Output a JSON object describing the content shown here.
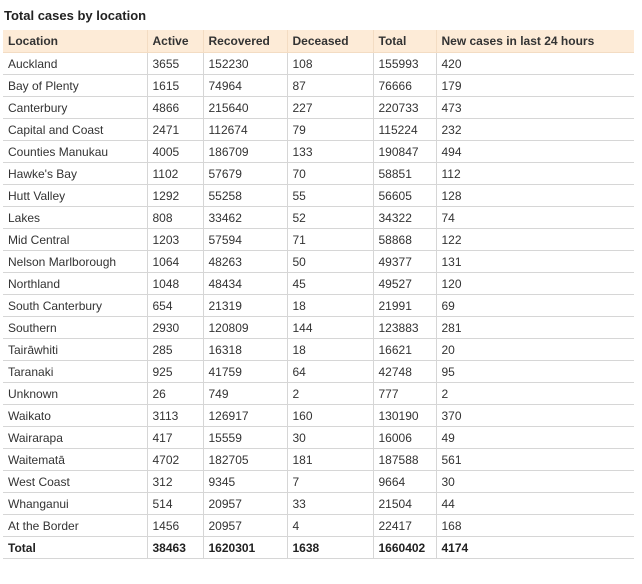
{
  "title": "Total cases by location",
  "columns": [
    "Location",
    "Active",
    "Recovered",
    "Deceased",
    "Total",
    "New cases in last 24 hours"
  ],
  "rows": [
    [
      "Auckland",
      "3655",
      "152230",
      "108",
      "155993",
      "420"
    ],
    [
      "Bay of Plenty",
      "1615",
      "74964",
      "87",
      "76666",
      "179"
    ],
    [
      "Canterbury",
      "4866",
      "215640",
      "227",
      "220733",
      "473"
    ],
    [
      "Capital and Coast",
      "2471",
      "112674",
      "79",
      "115224",
      "232"
    ],
    [
      "Counties Manukau",
      "4005",
      "186709",
      "133",
      "190847",
      "494"
    ],
    [
      "Hawke's Bay",
      "1102",
      "57679",
      "70",
      "58851",
      "112"
    ],
    [
      "Hutt Valley",
      "1292",
      "55258",
      "55",
      "56605",
      "128"
    ],
    [
      "Lakes",
      "808",
      "33462",
      "52",
      "34322",
      "74"
    ],
    [
      "Mid Central",
      "1203",
      "57594",
      "71",
      "58868",
      "122"
    ],
    [
      "Nelson Marlborough",
      "1064",
      "48263",
      "50",
      "49377",
      "131"
    ],
    [
      "Northland",
      "1048",
      "48434",
      "45",
      "49527",
      "120"
    ],
    [
      "South Canterbury",
      "654",
      "21319",
      "18",
      "21991",
      "69"
    ],
    [
      "Southern",
      "2930",
      "120809",
      "144",
      "123883",
      "281"
    ],
    [
      "Tairāwhiti",
      "285",
      "16318",
      "18",
      "16621",
      "20"
    ],
    [
      "Taranaki",
      "925",
      "41759",
      "64",
      "42748",
      "95"
    ],
    [
      "Unknown",
      "26",
      "749",
      "2",
      "777",
      "2"
    ],
    [
      "Waikato",
      "3113",
      "126917",
      "160",
      "130190",
      "370"
    ],
    [
      "Wairarapa",
      "417",
      "15559",
      "30",
      "16006",
      "49"
    ],
    [
      "Waitematā",
      "4702",
      "182705",
      "181",
      "187588",
      "561"
    ],
    [
      "West Coast",
      "312",
      "9345",
      "7",
      "9664",
      "30"
    ],
    [
      "Whanganui",
      "514",
      "20957",
      "33",
      "21504",
      "44"
    ],
    [
      "At the Border",
      "1456",
      "20957",
      "4",
      "22417",
      "168"
    ]
  ],
  "total": [
    "Total",
    "38463",
    "1620301",
    "1638",
    "1660402",
    "4174"
  ],
  "colors": {
    "header_bg": "#fdebd7",
    "border": "#d6d6d6"
  }
}
